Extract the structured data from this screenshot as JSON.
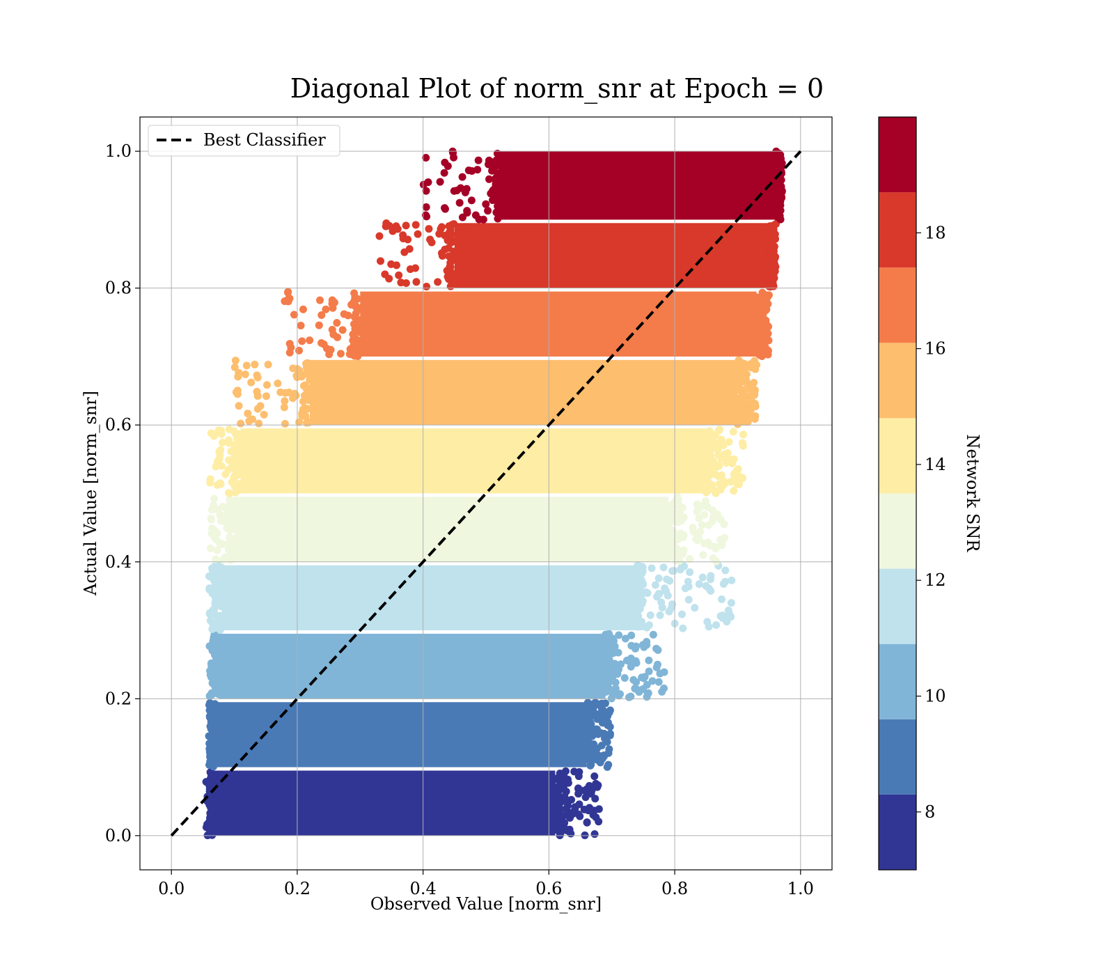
{
  "chart_data": {
    "type": "scatter",
    "title": "Diagonal Plot of norm_snr at Epoch = 0",
    "xlabel": "Observed Value [norm_snr]",
    "ylabel": "Actual Value [norm_snr]",
    "xlim": [
      -0.05,
      1.05
    ],
    "ylim": [
      -0.05,
      1.05
    ],
    "xticks": [
      "0.0",
      "0.2",
      "0.4",
      "0.6",
      "0.8",
      "1.0"
    ],
    "yticks": [
      "0.0",
      "0.2",
      "0.4",
      "0.6",
      "0.8",
      "1.0"
    ],
    "grid": true,
    "legend": {
      "position": "top-left",
      "entries": [
        {
          "label": "Best Classifier",
          "style": "dashed",
          "color": "#000000"
        }
      ]
    },
    "reference_line": {
      "label": "Best Classifier",
      "x": [
        0.0,
        1.0
      ],
      "y": [
        0.0,
        1.0
      ]
    },
    "colorbar": {
      "label": "Network SNR",
      "range": [
        7.0,
        20.0
      ],
      "ticks": [
        "8",
        "10",
        "12",
        "14",
        "16",
        "18"
      ],
      "colormap": "RdYlBu_r",
      "bins": [
        {
          "from": 7.0,
          "to": 8.3,
          "color": "#313695"
        },
        {
          "from": 8.3,
          "to": 9.6,
          "color": "#4a7ab6"
        },
        {
          "from": 9.6,
          "to": 10.9,
          "color": "#80b5d7"
        },
        {
          "from": 10.9,
          "to": 12.2,
          "color": "#bfe2ed"
        },
        {
          "from": 12.2,
          "to": 13.5,
          "color": "#eff7de"
        },
        {
          "from": 13.5,
          "to": 14.8,
          "color": "#feeda5"
        },
        {
          "from": 14.8,
          "to": 16.1,
          "color": "#fdbe6e"
        },
        {
          "from": 16.1,
          "to": 17.4,
          "color": "#f47c4a"
        },
        {
          "from": 17.4,
          "to": 18.7,
          "color": "#d8392a"
        },
        {
          "from": 18.7,
          "to": 20.0,
          "color": "#a50026"
        }
      ]
    },
    "series_bands": [
      {
        "y_range": [
          0.0,
          0.095
        ],
        "x_core": [
          0.065,
          0.61
        ],
        "x_sparse_max": 0.68,
        "color": "#313695"
      },
      {
        "y_range": [
          0.1,
          0.195
        ],
        "x_core": [
          0.07,
          0.66
        ],
        "x_sparse_max": 0.7,
        "color": "#4a7ab6"
      },
      {
        "y_range": [
          0.2,
          0.295
        ],
        "x_core": [
          0.075,
          0.69
        ],
        "x_sparse_max": 0.79,
        "color": "#80b5d7"
      },
      {
        "y_range": [
          0.3,
          0.395
        ],
        "x_core": [
          0.08,
          0.74
        ],
        "x_sparse_max": 0.9,
        "color": "#bfe2ed"
      },
      {
        "y_range": [
          0.4,
          0.495
        ],
        "x_core": [
          0.1,
          0.79
        ],
        "x_sparse_max": 0.88,
        "color": "#eff7de"
      },
      {
        "y_range": [
          0.5,
          0.595
        ],
        "x_core": [
          0.11,
          0.85
        ],
        "x_sparse_max": 0.91,
        "color": "#feeda5"
      },
      {
        "y_range": [
          0.6,
          0.695
        ],
        "x_core": [
          0.22,
          0.9
        ],
        "x_sparse_max": 0.93,
        "color": "#fdbe6e"
      },
      {
        "y_range": [
          0.7,
          0.795
        ],
        "x_core": [
          0.3,
          0.93
        ],
        "x_sparse_max": 0.95,
        "color": "#f47c4a"
      },
      {
        "y_range": [
          0.8,
          0.895
        ],
        "x_core": [
          0.45,
          0.95
        ],
        "x_sparse_max": 0.96,
        "color": "#d8392a"
      },
      {
        "y_range": [
          0.9,
          1.0
        ],
        "x_core": [
          0.52,
          0.96
        ],
        "x_sparse_max": 0.97,
        "color": "#a50026"
      }
    ]
  }
}
